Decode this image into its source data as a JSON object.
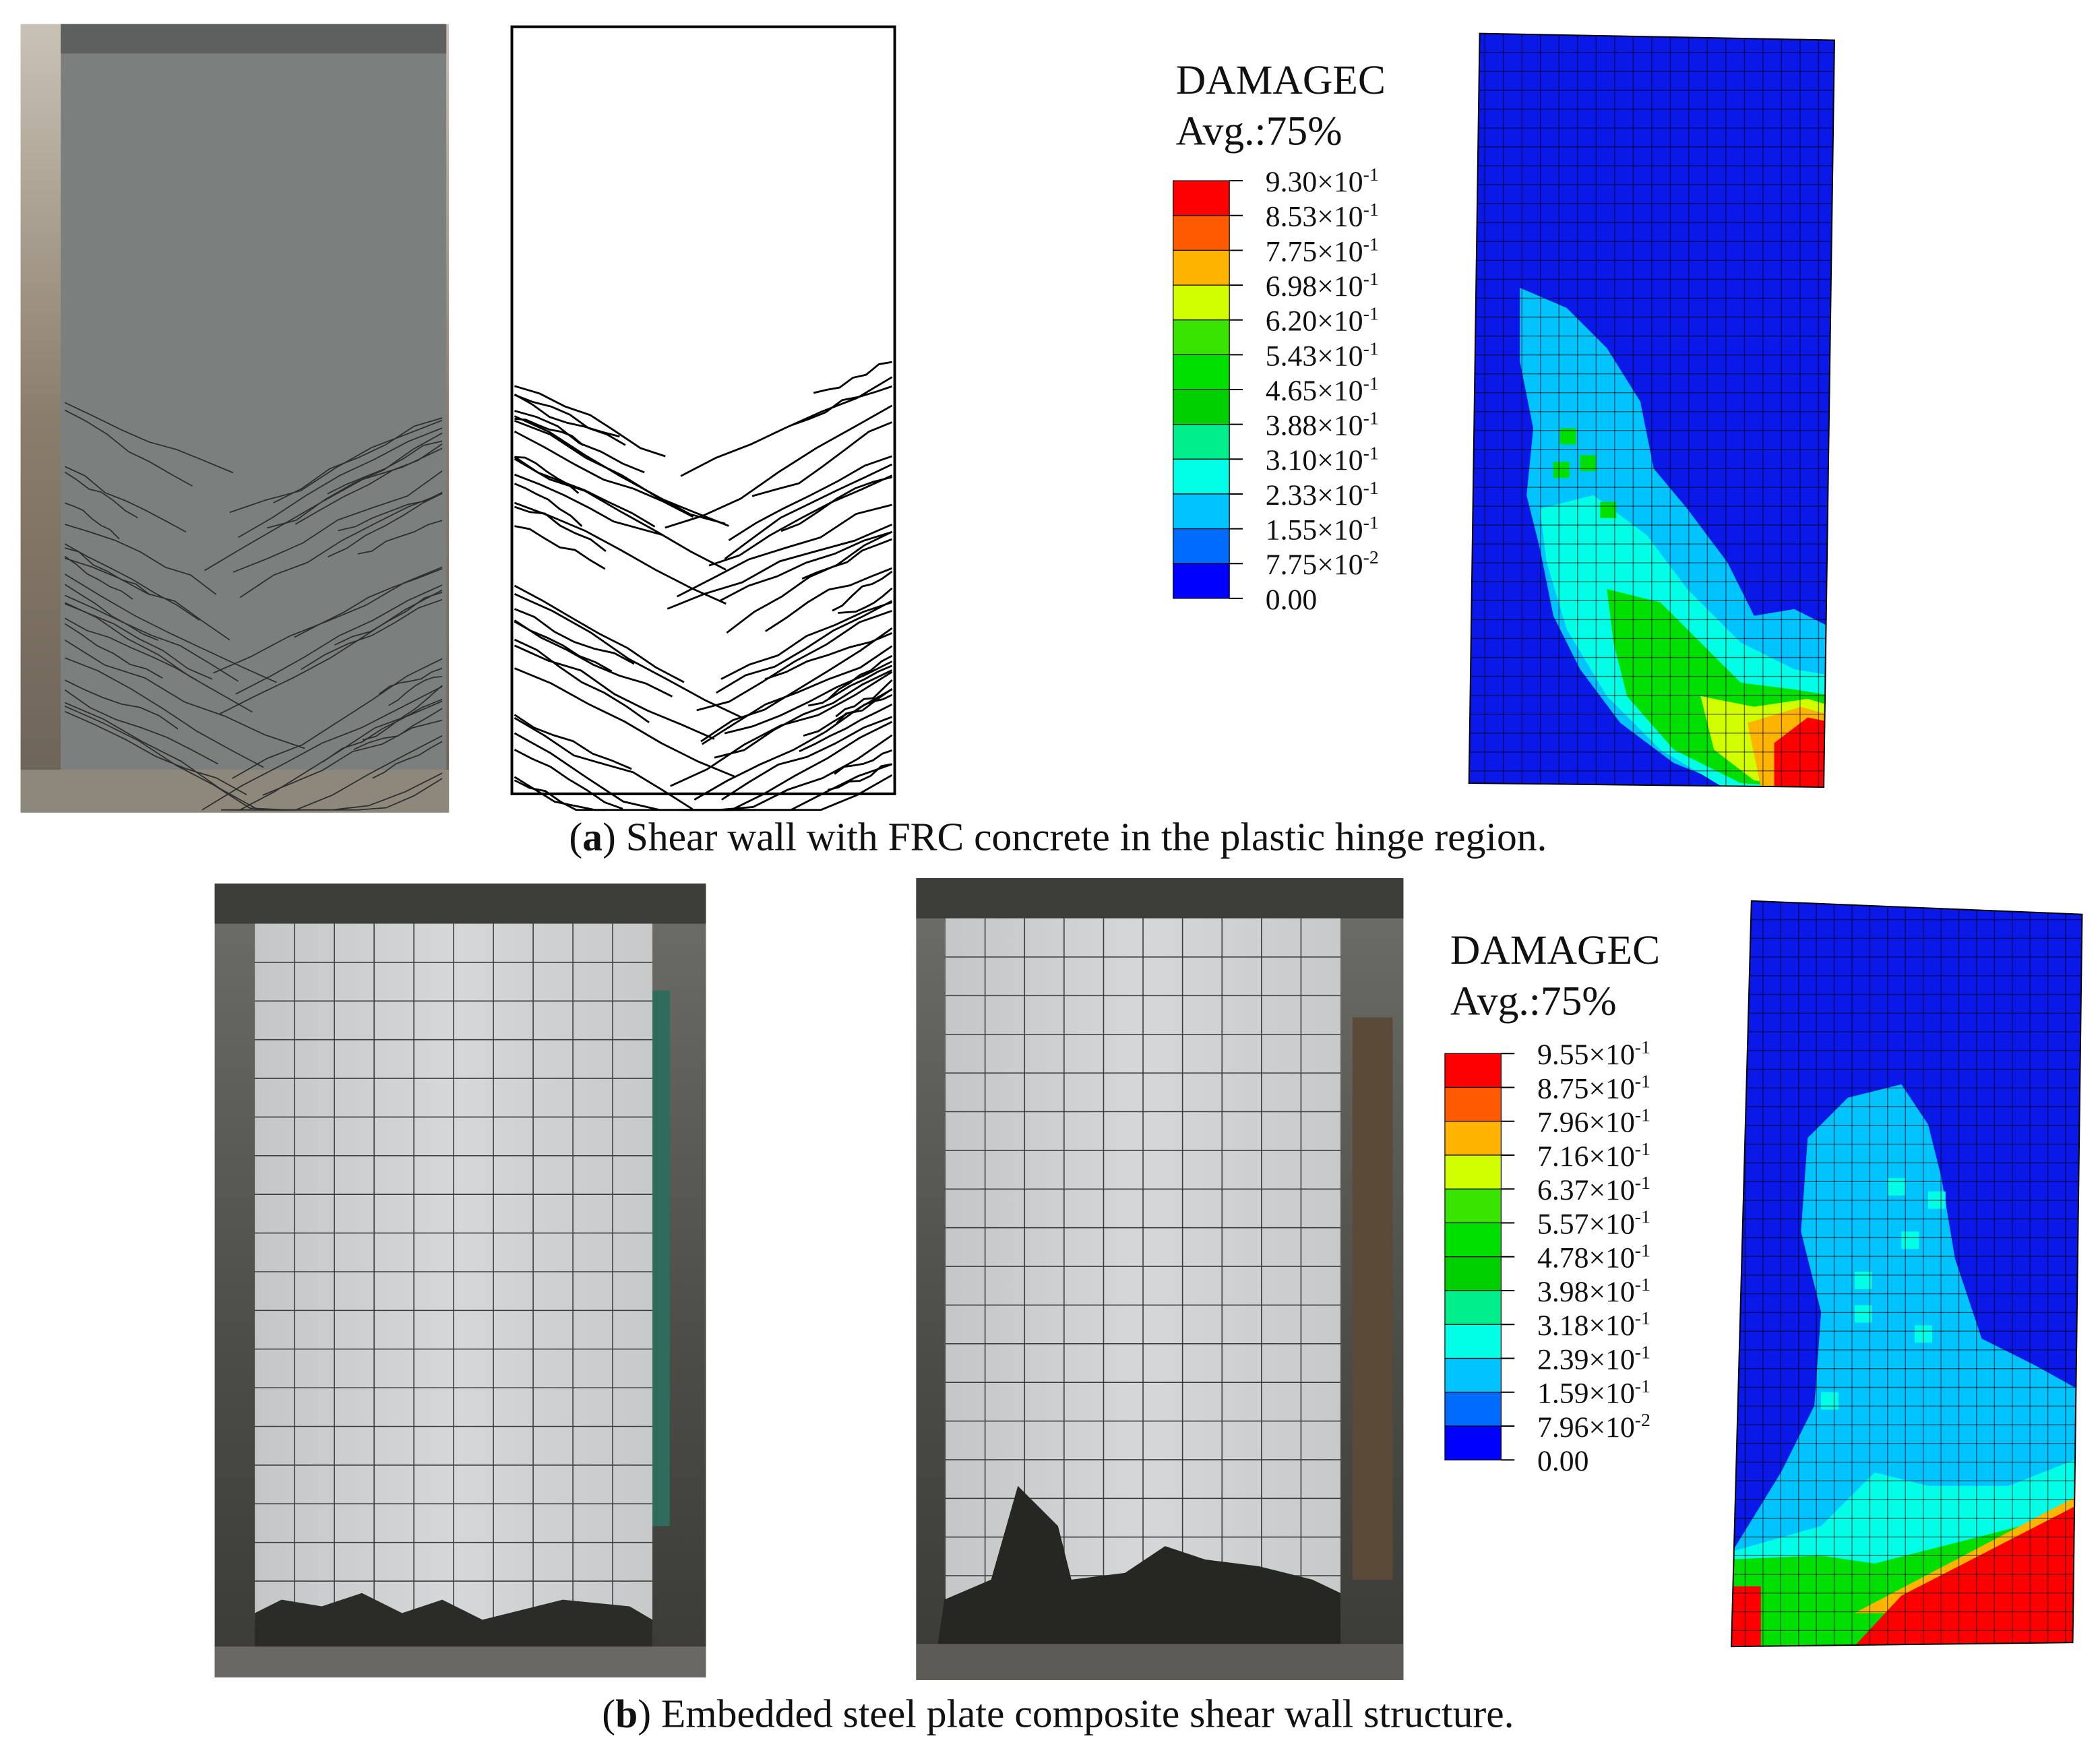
{
  "panel_a": {
    "legend_title": "DAMAGEC",
    "legend_subtitle": "Avg.:75%",
    "legend_labels": [
      {
        "mantissa": "9.30×10",
        "exponent": "-1"
      },
      {
        "mantissa": "8.53×10",
        "exponent": "-1"
      },
      {
        "mantissa": "7.75×10",
        "exponent": "-1"
      },
      {
        "mantissa": "6.98×10",
        "exponent": "-1"
      },
      {
        "mantissa": "6.20×10",
        "exponent": "-1"
      },
      {
        "mantissa": "5.43×10",
        "exponent": "-1"
      },
      {
        "mantissa": "4.65×10",
        "exponent": "-1"
      },
      {
        "mantissa": "3.88×10",
        "exponent": "-1"
      },
      {
        "mantissa": "3.10×10",
        "exponent": "-1"
      },
      {
        "mantissa": "2.33×10",
        "exponent": "-1"
      },
      {
        "mantissa": "1.55×10",
        "exponent": "-1"
      },
      {
        "mantissa": "7.75×10",
        "exponent": "-2"
      },
      {
        "mantissa": "0.00"
      }
    ],
    "caption": {
      "parts": [
        "(",
        "a",
        ") Shear wall with FRC concrete in the plastic hinge region."
      ]
    }
  },
  "panel_b": {
    "legend_title": "DAMAGEC",
    "legend_subtitle": "Avg.:75%",
    "legend_labels": [
      {
        "mantissa": "9.55×10",
        "exponent": "-1"
      },
      {
        "mantissa": "8.75×10",
        "exponent": "-1"
      },
      {
        "mantissa": "7.96×10",
        "exponent": "-1"
      },
      {
        "mantissa": "7.16×10",
        "exponent": "-1"
      },
      {
        "mantissa": "6.37×10",
        "exponent": "-1"
      },
      {
        "mantissa": "5.57×10",
        "exponent": "-1"
      },
      {
        "mantissa": "4.78×10",
        "exponent": "-1"
      },
      {
        "mantissa": "3.98×10",
        "exponent": "-1"
      },
      {
        "mantissa": "3.18×10",
        "exponent": "-1"
      },
      {
        "mantissa": "2.39×10",
        "exponent": "-1"
      },
      {
        "mantissa": "1.59×10",
        "exponent": "-1"
      },
      {
        "mantissa": "7.96×10",
        "exponent": "-2"
      },
      {
        "mantissa": "0.00"
      }
    ],
    "caption": {
      "parts": [
        "(",
        "b",
        ") Embedded steel plate composite shear wall structure."
      ]
    }
  }
}
